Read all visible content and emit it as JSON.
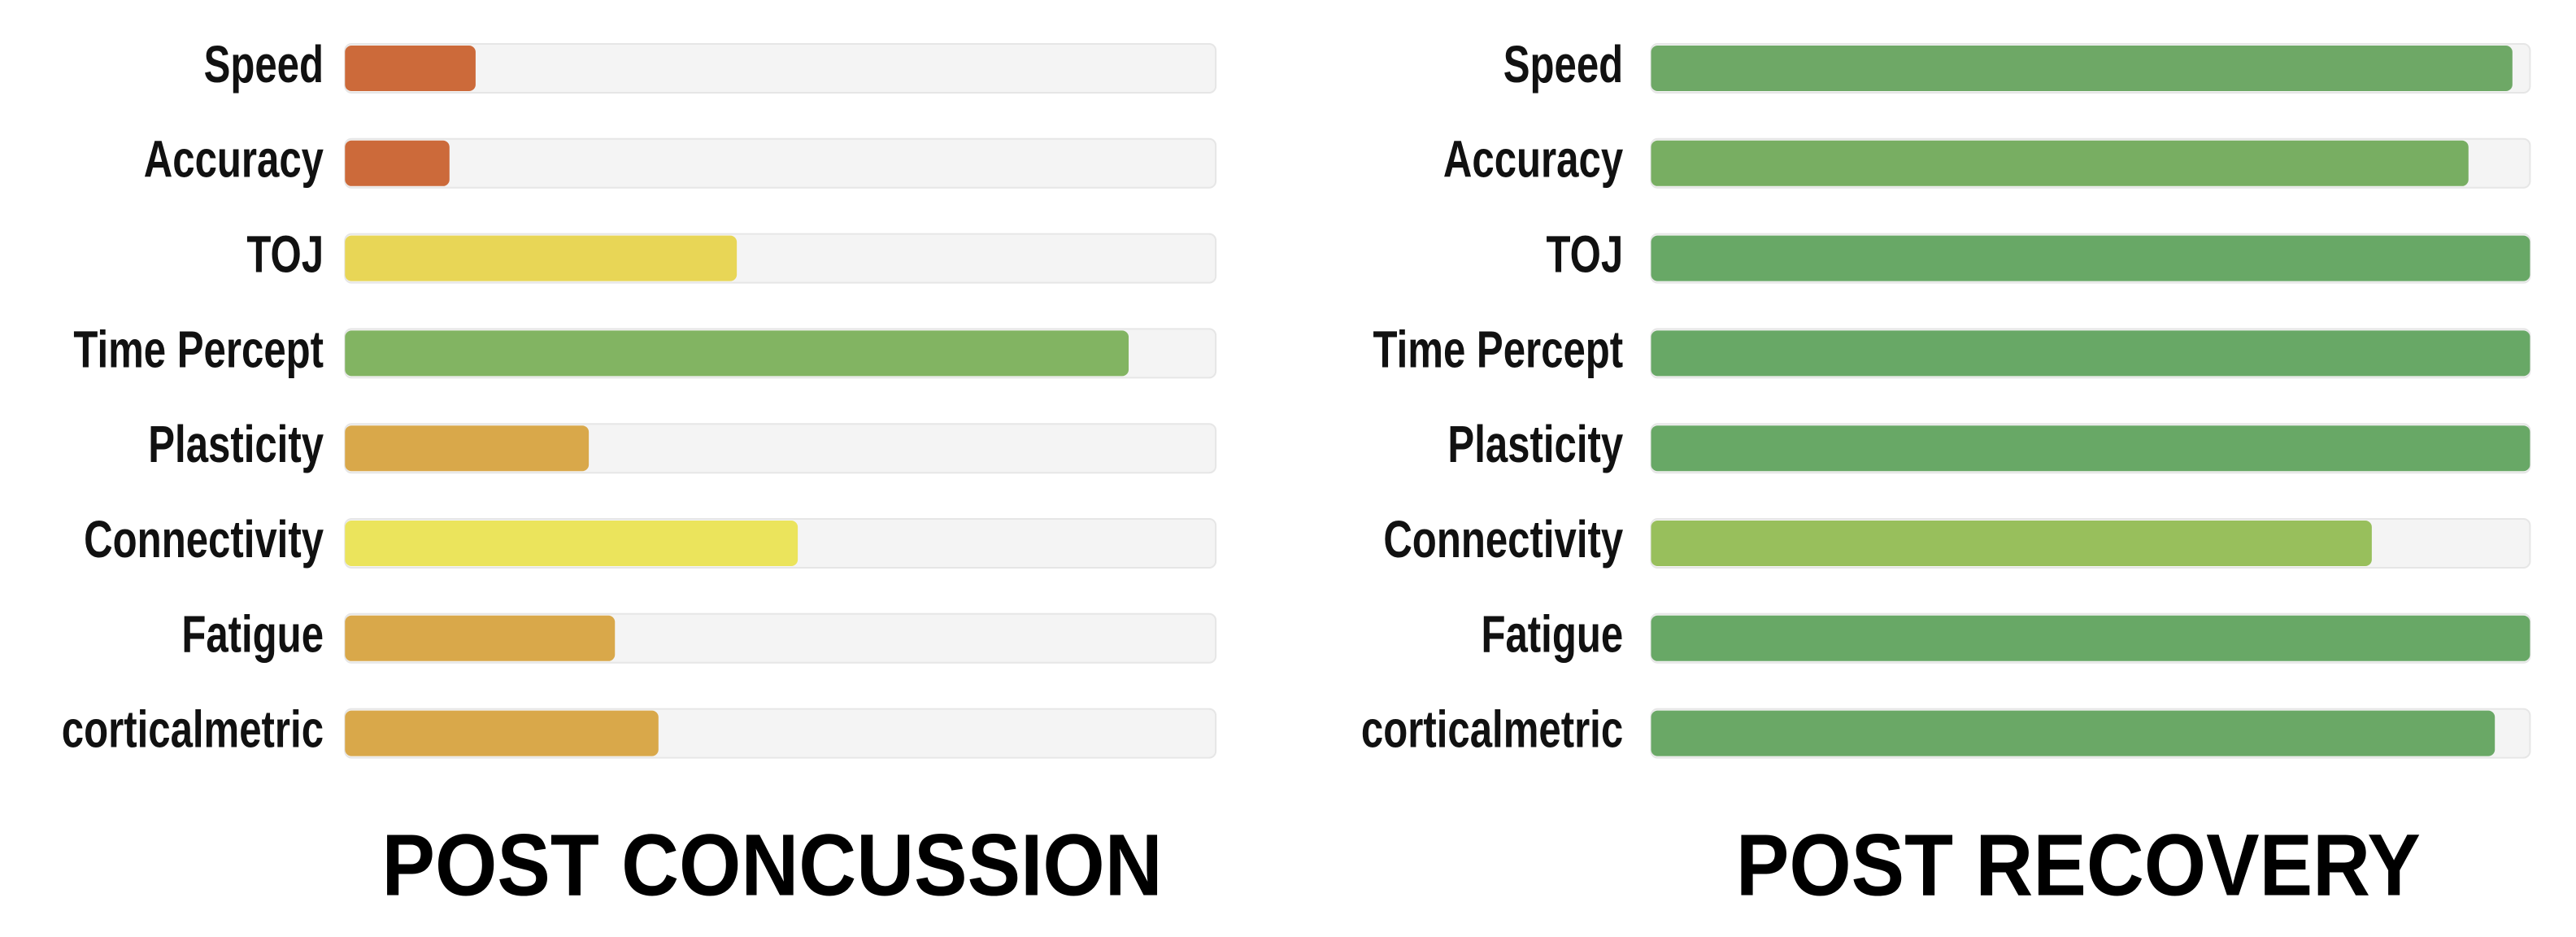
{
  "chart_data": [
    {
      "type": "bar",
      "orientation": "horizontal",
      "title": "POST CONCUSSION",
      "categories": [
        "Speed",
        "Accuracy",
        "TOJ",
        "Time Percept",
        "Plasticity",
        "Connectivity",
        "Fatigue",
        "corticalmetric"
      ],
      "values": [
        15,
        12,
        45,
        90,
        28,
        52,
        31,
        36
      ],
      "colors": [
        "#cc6a3a",
        "#cc6a3a",
        "#e8d656",
        "#82b462",
        "#d9a84a",
        "#ebe45c",
        "#d9a84a",
        "#d9a84a"
      ],
      "xlim": [
        0,
        100
      ],
      "track_color": "#f4f4f4"
    },
    {
      "type": "bar",
      "orientation": "horizontal",
      "title": "POST RECOVERY",
      "categories": [
        "Speed",
        "Accuracy",
        "TOJ",
        "Time Percept",
        "Plasticity",
        "Connectivity",
        "Fatigue",
        "corticalmetric"
      ],
      "values": [
        98,
        93,
        100,
        100,
        100,
        82,
        100,
        96
      ],
      "colors": [
        "#6ea866",
        "#78ae62",
        "#68a866",
        "#68a866",
        "#68a866",
        "#98bf5c",
        "#68a866",
        "#6aa866"
      ],
      "xlim": [
        0,
        100
      ],
      "track_color": "#f4f4f4"
    }
  ]
}
